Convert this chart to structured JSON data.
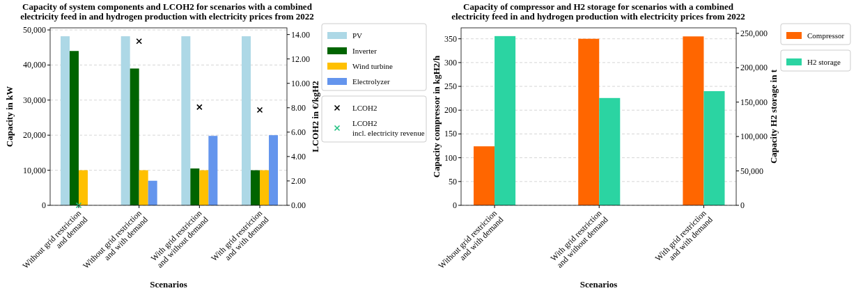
{
  "chart_data": [
    {
      "type": "bar",
      "title": "Capacity of system components and LCOH2 for scenarios with a combined\nelectricity feed in and hydrogen production with electricity prices from 2022",
      "xlabel": "Scenarios",
      "ylabel": "Capacity in kW",
      "y2label": "LCOH2 in €/kgH2",
      "categories": [
        "Without grid restriction\nand demand",
        "Without grid restriction\nand with demand",
        "With grid restriction\nand without demand",
        "With grid restriction\nand with demand"
      ],
      "series": [
        {
          "name": "PV",
          "color": "#add8e6",
          "values": [
            48200,
            48200,
            48200,
            48200
          ]
        },
        {
          "name": "Inverter",
          "color": "#006400",
          "values": [
            44000,
            39000,
            10500,
            10000
          ]
        },
        {
          "name": "Wind turbine",
          "color": "#ffc000",
          "values": [
            10000,
            10000,
            10000,
            10000
          ]
        },
        {
          "name": "Electrolyzer",
          "color": "#6495ed",
          "values": [
            0,
            7000,
            19800,
            20000
          ]
        },
        {
          "name": "LCOH2",
          "type": "scatter",
          "axis": "y2",
          "marker": "cross",
          "color": "#000000",
          "values": [
            null,
            13.45,
            8.05,
            7.82
          ]
        },
        {
          "name": "LCOH2\nincl. electricity revenue",
          "type": "scatter",
          "axis": "y2",
          "marker": "cross",
          "color": "#20c080",
          "values": [
            0,
            null,
            null,
            null
          ]
        }
      ],
      "ylim": [
        0,
        50600
      ],
      "yticks": [
        0,
        {
          "value": 10000,
          "label": "10,000"
        },
        {
          "value": 20000,
          "label": "20,000"
        },
        {
          "value": 30000,
          "label": "30,000"
        },
        {
          "value": 40000,
          "label": "40,000"
        },
        {
          "value": 50000,
          "label": "50,000"
        }
      ],
      "y2lim": [
        0,
        14.55
      ],
      "y2ticks": [
        {
          "value": 0,
          "label": "0.00"
        },
        {
          "value": 2,
          "label": "2.00"
        },
        {
          "value": 4,
          "label": "4.00"
        },
        {
          "value": 6,
          "label": "6.00"
        },
        {
          "value": 8,
          "label": "8.00"
        },
        {
          "value": 10,
          "label": "10.00"
        },
        {
          "value": 12,
          "label": "12.00"
        },
        {
          "value": 14,
          "label": "14.00"
        }
      ],
      "grid": "y",
      "legend": "right"
    },
    {
      "type": "bar",
      "title": "Capacity of compressor and H2 storage for scenarios with a combined\nelectricity feed in and hydrogen production with electricity prices from 2022",
      "xlabel": "Scenarios",
      "ylabel": "Capacity compressor in kgH2/h",
      "y2label": "Capacity H2 storage in t",
      "categories": [
        "Without grid restriction\nand with demand",
        "With grid restriction\nand without demand",
        "With grid restriction\nand with demand"
      ],
      "series": [
        {
          "name": "Compressor",
          "color": "#ff6600",
          "values": [
            124,
            350,
            355
          ]
        },
        {
          "name": "H2 storage",
          "axis": "y2",
          "color": "#2bd4a2",
          "values": [
            246000,
            156000,
            166000
          ]
        }
      ],
      "ylim": [
        0,
        373
      ],
      "yticks": [
        0,
        50,
        100,
        150,
        200,
        250,
        300,
        350
      ],
      "y2lim": [
        0,
        258000
      ],
      "y2ticks": [
        0,
        {
          "value": 50000,
          "label": "50,000"
        },
        {
          "value": 100000,
          "label": "100,000"
        },
        {
          "value": 150000,
          "label": "150,000"
        },
        {
          "value": 200000,
          "label": "200,000"
        },
        {
          "value": 250000,
          "label": "250,000"
        }
      ],
      "grid": "y",
      "legend": "right"
    }
  ]
}
